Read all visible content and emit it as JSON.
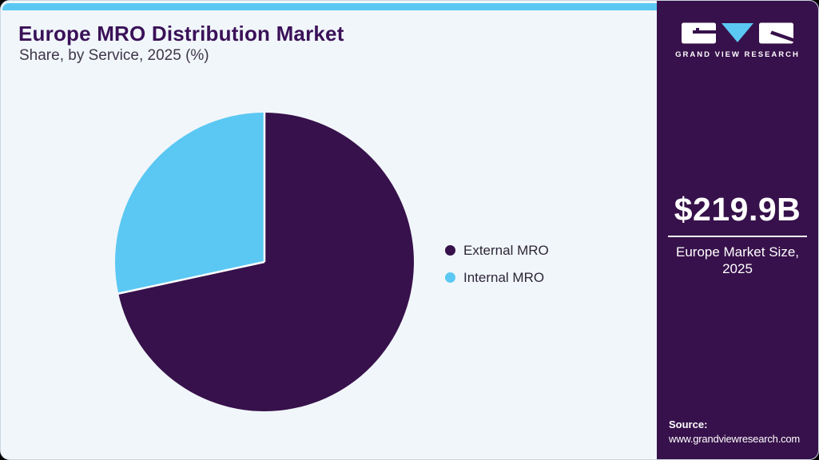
{
  "header": {
    "title": "Europe MRO Distribution Market",
    "subtitle": "Share, by Service, 2025 (%)"
  },
  "chart_data": {
    "type": "pie",
    "title": "Europe MRO Distribution Market Share, by Service, 2025 (%)",
    "unit": "percent",
    "start_angle_deg": 0,
    "direction": "clockwise",
    "legend_position": "right-middle",
    "slices": [
      {
        "label": "External MRO",
        "value": 71.6,
        "color": "#37114b"
      },
      {
        "label": "Internal MRO",
        "value": 28.4,
        "color": "#5bc8f3"
      }
    ]
  },
  "sidebar": {
    "brand": "GRAND VIEW RESEARCH",
    "market_size_value": "$219.9B",
    "market_size_label": "Europe Market Size, 2025",
    "source_label": "Source:",
    "source_url": "www.grandviewresearch.com"
  },
  "colors": {
    "accent_cyan": "#5bc8f3",
    "deep_purple": "#37114b",
    "card_background": "#f1f6fa",
    "title_text": "#3a1158",
    "white": "#ffffff"
  }
}
